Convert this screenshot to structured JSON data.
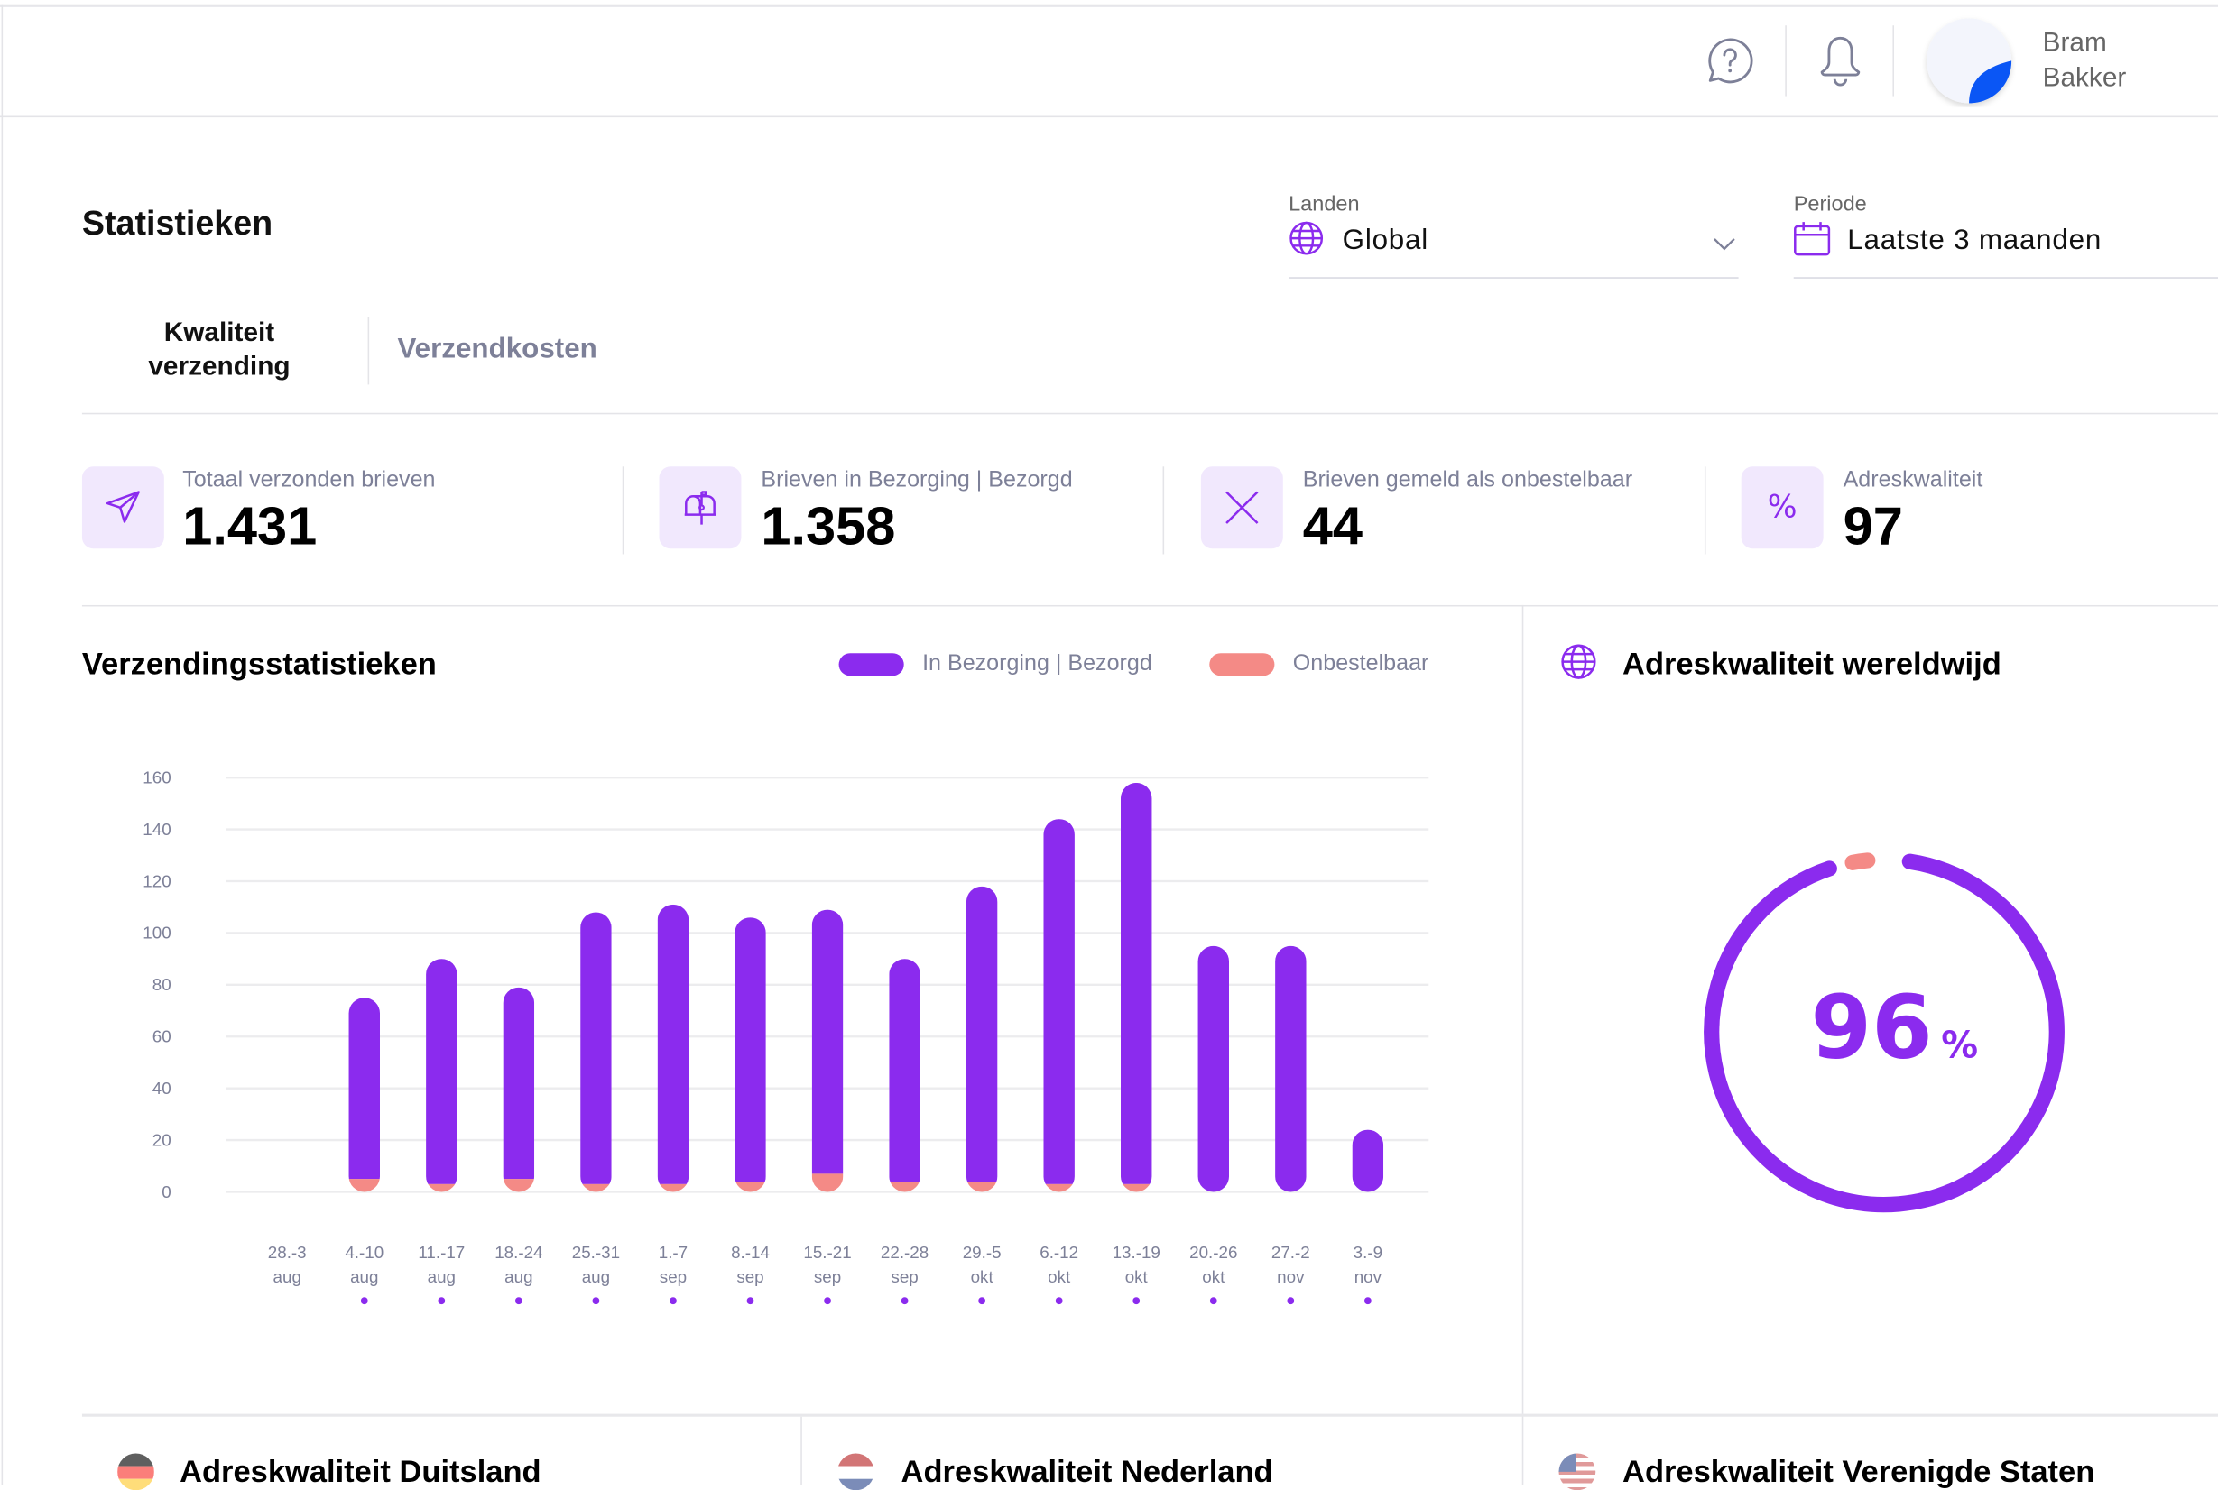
{
  "header": {
    "user_first": "Bram",
    "user_last": "Bakker",
    "icons": [
      "help-chat-icon",
      "bell-icon",
      "avatar"
    ]
  },
  "page": {
    "title": "Statistieken"
  },
  "filters": {
    "landen": {
      "label": "Landen",
      "value": "Global",
      "icon": "globe-icon"
    },
    "periode": {
      "label": "Periode",
      "value": "Laatste 3 maanden",
      "icon": "calendar-icon"
    }
  },
  "tabs": [
    {
      "label_line1": "Kwaliteit",
      "label_line2": "verzending",
      "active": true
    },
    {
      "label": "Verzendkosten",
      "active": false
    }
  ],
  "kpis": [
    {
      "label": "Totaal verzonden brieven",
      "value": "1.431",
      "icon": "paper-plane-icon"
    },
    {
      "label": "Brieven in Bezorging | Bezorgd",
      "value": "1.358",
      "icon": "mailbox-icon"
    },
    {
      "label": "Brieven gemeld als onbestelbaar",
      "value": "44",
      "icon": "x-icon"
    },
    {
      "label": "Adreskwaliteit",
      "value": "97",
      "icon": "percent-icon"
    }
  ],
  "colors": {
    "accent": "#8b2bee",
    "coral": "#f48a86",
    "icon_bg": "#f1e8fd",
    "muted": "#7d8098"
  },
  "chart_data": {
    "type": "bar",
    "stacked": true,
    "title": "Verzendingsstatistieken",
    "legend_placement": "top-right",
    "ylim": [
      0,
      160
    ],
    "yticks": [
      "0",
      "20",
      "40",
      "60",
      "80",
      "100",
      "120",
      "140",
      "160"
    ],
    "grid": true,
    "categories": [
      {
        "range": "28.-3",
        "month": "aug"
      },
      {
        "range": "4.-10",
        "month": "aug"
      },
      {
        "range": "11.-17",
        "month": "aug"
      },
      {
        "range": "18.-24",
        "month": "aug"
      },
      {
        "range": "25.-31",
        "month": "aug"
      },
      {
        "range": "1.-7",
        "month": "sep"
      },
      {
        "range": "8.-14",
        "month": "sep"
      },
      {
        "range": "15.-21",
        "month": "sep"
      },
      {
        "range": "22.-28",
        "month": "sep"
      },
      {
        "range": "29.-5",
        "month": "okt"
      },
      {
        "range": "6.-12",
        "month": "okt"
      },
      {
        "range": "13.-19",
        "month": "okt"
      },
      {
        "range": "20.-26",
        "month": "okt"
      },
      {
        "range": "27.-2",
        "month": "nov"
      },
      {
        "range": "3.-9",
        "month": "nov"
      }
    ],
    "series": [
      {
        "name": "In Bezorging | Bezorgd",
        "color": "#8b2bee",
        "values": [
          0,
          70,
          87,
          74,
          105,
          108,
          102,
          102,
          86,
          114,
          141,
          155,
          95,
          95,
          24
        ]
      },
      {
        "name": "Onbestelbaar",
        "color": "#f48a86",
        "values": [
          0,
          5,
          3,
          5,
          3,
          3,
          4,
          7,
          4,
          4,
          3,
          3,
          0,
          0,
          0
        ]
      }
    ]
  },
  "world_quality": {
    "title": "Adreskwaliteit wereldwijd",
    "value": "96",
    "unit": "%",
    "percent": 96,
    "remainder_percent": 4
  },
  "country_cards": [
    {
      "title": "Adreskwaliteit Duitsland",
      "flag": "germany-flag"
    },
    {
      "title": "Adreskwaliteit Nederland",
      "flag": "netherlands-flag"
    },
    {
      "title": "Adreskwaliteit Verenigde Staten",
      "flag": "usa-flag"
    }
  ]
}
